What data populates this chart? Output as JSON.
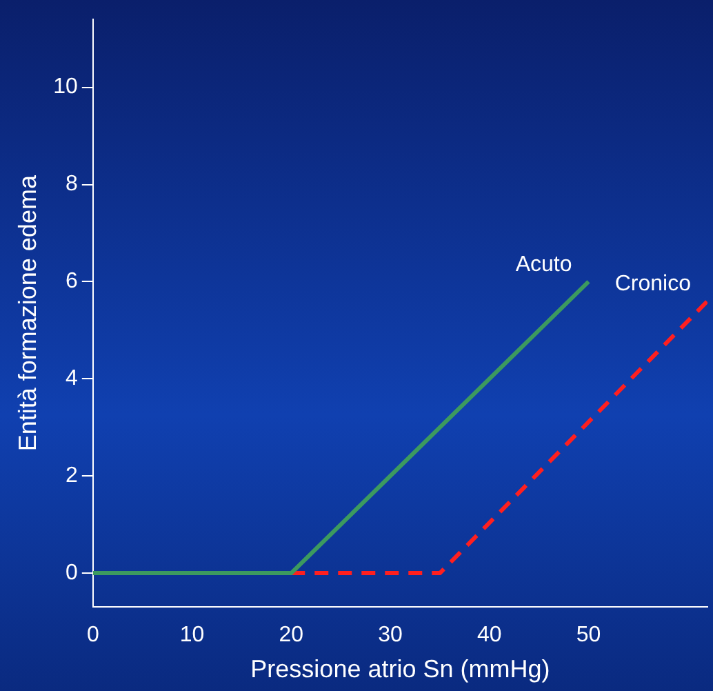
{
  "chart_data": {
    "type": "line",
    "xlabel": "Pressione atrio Sn (mmHg)",
    "ylabel": "Entità formazione edema",
    "xlim": [
      0,
      62
    ],
    "ylim": [
      -0.7,
      11.4
    ],
    "xticks": [
      0,
      10,
      20,
      30,
      40,
      50
    ],
    "yticks": [
      0,
      2,
      4,
      6,
      8,
      10
    ],
    "grid": false,
    "legend": false,
    "marker": "none",
    "series": [
      {
        "name": "Acuto",
        "color": "#3c9a5f",
        "x": [
          0,
          20,
          50
        ],
        "values": [
          0,
          0,
          6
        ],
        "line_style": "solid"
      },
      {
        "name": "Cronico",
        "color": "#ff1f1f",
        "x": [
          20,
          35,
          62
        ],
        "values": [
          0,
          0,
          5.6
        ],
        "line_style": "dashed"
      }
    ]
  }
}
